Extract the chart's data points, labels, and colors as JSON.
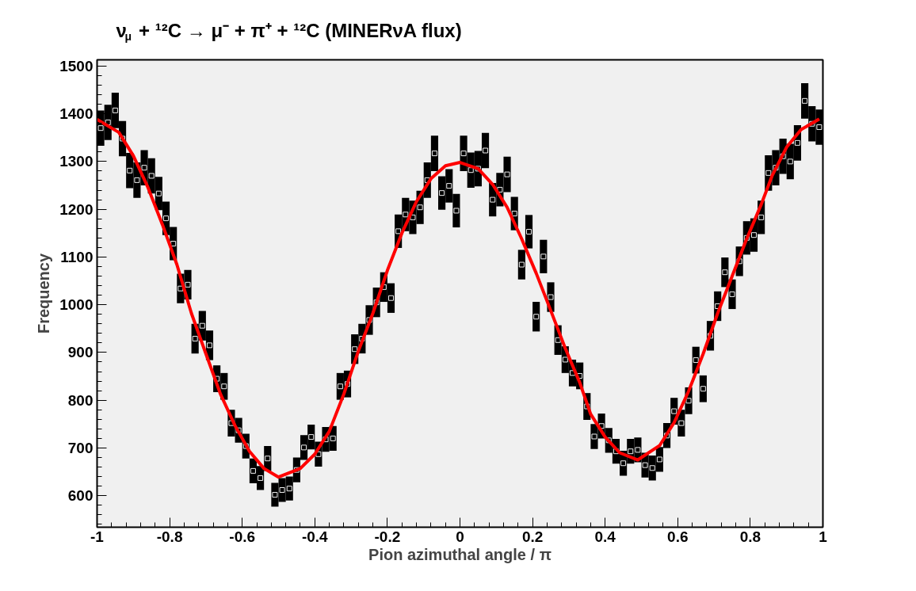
{
  "chart_data": {
    "type": "scatter",
    "title": "ν$_{μ}$ + ¹²C → μ⁻ + π⁺ + ¹²C    (MINERνA flux)",
    "xlabel": "Pion azimuthal angle / π",
    "ylabel": "Frequency",
    "xlim": [
      -1,
      1
    ],
    "ylim": [
      534,
      1513
    ],
    "xticks": [
      -1,
      -0.8,
      -0.6,
      -0.4,
      -0.2,
      0,
      0.2,
      0.4,
      0.6,
      0.8,
      1
    ],
    "yticks": [
      600,
      700,
      800,
      900,
      1000,
      1100,
      1200,
      1300,
      1400,
      1500
    ],
    "grid": false,
    "marker": "square",
    "series": [
      {
        "color": "#000000",
        "x": [
          -0.99,
          -0.97,
          -0.95,
          -0.93,
          -0.91,
          -0.89,
          -0.87,
          -0.85,
          -0.83,
          -0.81,
          -0.79,
          -0.77,
          -0.75,
          -0.73,
          -0.71,
          -0.69,
          -0.67,
          -0.65,
          -0.63,
          -0.61,
          -0.59,
          -0.57,
          -0.55,
          -0.53,
          -0.51,
          -0.49,
          -0.47,
          -0.45,
          -0.43,
          -0.41,
          -0.39,
          -0.37,
          -0.35,
          -0.33,
          -0.31,
          -0.29,
          -0.27,
          -0.25,
          -0.23,
          -0.21,
          -0.19,
          -0.17,
          -0.15,
          -0.13,
          -0.11,
          -0.09,
          -0.07,
          -0.05,
          -0.03,
          -0.01,
          0.01,
          0.03,
          0.05,
          0.07,
          0.09,
          0.11,
          0.13,
          0.15,
          0.17,
          0.19,
          0.21,
          0.23,
          0.25,
          0.27,
          0.29,
          0.31,
          0.33,
          0.35,
          0.37,
          0.39,
          0.41,
          0.43,
          0.45,
          0.47,
          0.49,
          0.51,
          0.53,
          0.55,
          0.57,
          0.59,
          0.61,
          0.63,
          0.65,
          0.67,
          0.69,
          0.71,
          0.73,
          0.75,
          0.77,
          0.79,
          0.81,
          0.83,
          0.85,
          0.87,
          0.89,
          0.91,
          0.93,
          0.95,
          0.97,
          0.99
        ],
        "values": [
          1370,
          1382,
          1407,
          1348,
          1281,
          1261,
          1287,
          1270,
          1233,
          1181,
          1128,
          1034,
          1042,
          929,
          956,
          915,
          845,
          829,
          752,
          737,
          704,
          652,
          637,
          678,
          602,
          612,
          615,
          654,
          701,
          723,
          687,
          718,
          720,
          829,
          834,
          907,
          929,
          968,
          1005,
          1037,
          1014,
          1154,
          1189,
          1183,
          1204,
          1261,
          1317,
          1234,
          1249,
          1197,
          1317,
          1282,
          1285,
          1323,
          1220,
          1241,
          1273,
          1191,
          1084,
          1153,
          975,
          1101,
          1016,
          926,
          885,
          857,
          851,
          787,
          724,
          746,
          716,
          693,
          668,
          693,
          696,
          664,
          658,
          676,
          726,
          777,
          752,
          799,
          884,
          824,
          935,
          997,
          1068,
          1022,
          1091,
          1140,
          1146,
          1183,
          1276,
          1287,
          1311,
          1300,
          1339,
          1427,
          1379,
          1372
        ],
        "errors": [
          37,
          37,
          37,
          37,
          37,
          37,
          37,
          37,
          35,
          35,
          35,
          31,
          31,
          31,
          31,
          31,
          28,
          28,
          28,
          26,
          26,
          26,
          25,
          26,
          25,
          25,
          25,
          26,
          26,
          26,
          26,
          26,
          26,
          28,
          28,
          31,
          31,
          31,
          31,
          31,
          31,
          35,
          35,
          35,
          35,
          37,
          37,
          35,
          35,
          35,
          37,
          37,
          37,
          37,
          35,
          35,
          37,
          35,
          31,
          35,
          31,
          35,
          31,
          31,
          28,
          28,
          28,
          28,
          26,
          26,
          26,
          26,
          26,
          26,
          26,
          26,
          26,
          26,
          26,
          28,
          28,
          28,
          28,
          28,
          31,
          31,
          31,
          31,
          31,
          35,
          35,
          35,
          37,
          37,
          37,
          37,
          37,
          37,
          37,
          37
        ]
      },
      {
        "type": "line",
        "color": "#ff0000",
        "line_style": "solid",
        "marker": "none",
        "x": [
          -1.0,
          -0.94,
          -0.9,
          -0.86,
          -0.82,
          -0.78,
          -0.74,
          -0.7,
          -0.66,
          -0.62,
          -0.58,
          -0.54,
          -0.5,
          -0.44,
          -0.4,
          -0.36,
          -0.32,
          -0.28,
          -0.24,
          -0.2,
          -0.16,
          -0.12,
          -0.08,
          -0.04,
          0.0,
          0.05,
          0.09,
          0.13,
          0.17,
          0.21,
          0.25,
          0.29,
          0.33,
          0.36,
          0.4,
          0.44,
          0.49,
          0.55,
          0.59,
          0.63,
          0.67,
          0.71,
          0.75,
          0.79,
          0.83,
          0.86,
          0.9,
          0.94,
          0.99
        ],
        "values": [
          1388,
          1361,
          1312,
          1246,
          1168,
          1084,
          982,
          897,
          813,
          747,
          693,
          657,
          639,
          657,
          687,
          735,
          813,
          903,
          982,
          1072,
          1150,
          1216,
          1264,
          1291,
          1298,
          1285,
          1252,
          1204,
          1138,
          1066,
          988,
          909,
          837,
          771,
          723,
          690,
          675,
          705,
          753,
          819,
          897,
          982,
          1060,
          1138,
          1210,
          1270,
          1330,
          1367,
          1389
        ]
      }
    ]
  }
}
